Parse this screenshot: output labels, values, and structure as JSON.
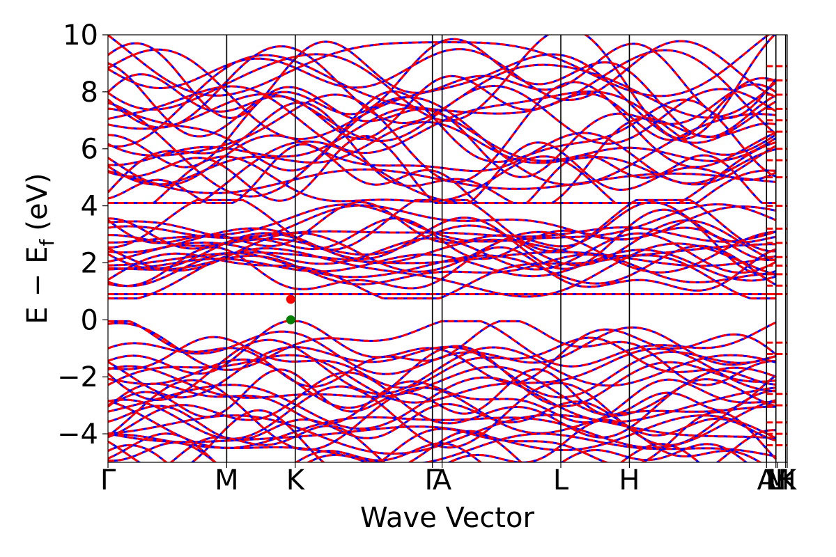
{
  "chart_data": {
    "type": "line",
    "title": "",
    "xlabel": "Wave Vector",
    "ylabel_parts": {
      "E": "E",
      "minus": "−",
      "E2": "E",
      "sub": "f",
      "unit": "(eV)"
    },
    "ylim": [
      -5,
      10
    ],
    "y_ticks": [
      10,
      8,
      6,
      4,
      2,
      0,
      -2,
      -4
    ],
    "y_tick_labels": [
      "10",
      "8",
      "6",
      "4",
      "2",
      "0",
      "−2",
      "−4"
    ],
    "x_range": [
      0,
      4.2
    ],
    "k_points": [
      {
        "label": "Γ",
        "x": 0.0
      },
      {
        "label": "M",
        "x": 0.734
      },
      {
        "label": "K",
        "x": 1.158
      },
      {
        "label": "Γ",
        "x": 2.006
      },
      {
        "label": "A",
        "x": 2.066
      },
      {
        "label": "L",
        "x": 2.8
      },
      {
        "label": "H",
        "x": 3.224
      },
      {
        "label": "A",
        "x": 4.072
      },
      {
        "label": "L",
        "x": 4.13
      },
      {
        "label": "M",
        "x": 4.14
      },
      {
        "label": "H",
        "x": 4.19
      },
      {
        "label": "K",
        "x": 4.2
      }
    ],
    "high_symmetry_lines_x": [
      0.734,
      1.158,
      2.006,
      2.066,
      2.8,
      3.224,
      4.072,
      4.13,
      4.19
    ],
    "bands_series": [
      {
        "style": "solid",
        "color": "#0000ff"
      },
      {
        "style": "dashed",
        "color": "#ff0000"
      }
    ],
    "markers": [
      {
        "label": "CBM",
        "x": 1.13,
        "y": 0.72,
        "color": "#ff0000"
      },
      {
        "label": "VBM",
        "x": 1.13,
        "y": 0.0,
        "color": "#008000"
      }
    ],
    "flat_band_energy": 0.9,
    "valence_band_max": 0.0,
    "grid": false
  }
}
